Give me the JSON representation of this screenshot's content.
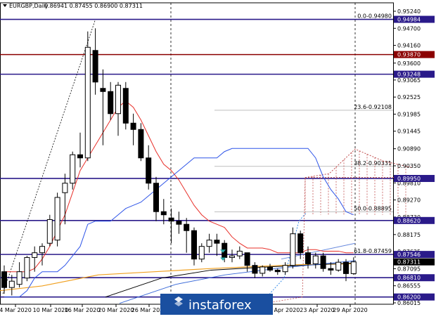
{
  "header": {
    "symbol": "EURGBP,Daily",
    "ohlc": "0.86941 0.87455 0.86900 0.87311"
  },
  "watermark": "instaforex",
  "colors": {
    "bull_candle": "#ffffff",
    "bear_candle": "#000000",
    "tenkan": "#e8302a",
    "kijun": "#2f55e8",
    "senkou_a": "#c05050",
    "senkou_b": "#c05050",
    "chikou": "#3a8de8",
    "level_line": "#2a1a8a",
    "red_level": "#8b0000",
    "sma_orange": "#f0a020",
    "sma_black": "#000000",
    "trendline": "#3a6ad8",
    "channel": "#6688dd",
    "current_price_bg": "#000000",
    "level_badge_bg": "#2a1a8a",
    "red_badge_bg": "#8b0000",
    "watermark_band": "#1a4fa0"
  },
  "chart_data": {
    "type": "candlestick",
    "title": "EURGBP,Daily",
    "ylim": [
      0.86015,
      0.9524
    ],
    "y_ticks": [
      "0.95240",
      "0.94700",
      "0.94160",
      "0.93600",
      "0.93065",
      "0.92525",
      "0.91985",
      "0.91445",
      "0.90890",
      "0.90350",
      "0.89810",
      "0.89270",
      "0.88730",
      "0.88175",
      "0.87635",
      "0.87095",
      "0.86555",
      "0.86015"
    ],
    "x_ticks": [
      "4 Mar 2020",
      "10 Mar 2020",
      "16 Mar 2020",
      "20 Mar 2020",
      "26 Mar 2020",
      "23 Apr 2020",
      "29 Apr 2020"
    ],
    "x_ticks_partial": [
      "Apr 2020"
    ],
    "candles": [
      {
        "o": 0.87,
        "h": 0.872,
        "l": 0.863,
        "c": 0.865
      },
      {
        "o": 0.865,
        "h": 0.869,
        "l": 0.8625,
        "c": 0.867
      },
      {
        "o": 0.866,
        "h": 0.873,
        "l": 0.865,
        "c": 0.87
      },
      {
        "o": 0.868,
        "h": 0.875,
        "l": 0.867,
        "c": 0.8745
      },
      {
        "o": 0.8745,
        "h": 0.878,
        "l": 0.87,
        "c": 0.876
      },
      {
        "o": 0.876,
        "h": 0.879,
        "l": 0.872,
        "c": 0.878
      },
      {
        "o": 0.879,
        "h": 0.888,
        "l": 0.878,
        "c": 0.8865
      },
      {
        "o": 0.88,
        "h": 0.895,
        "l": 0.878,
        "c": 0.8935
      },
      {
        "o": 0.895,
        "h": 0.901,
        "l": 0.885,
        "c": 0.898
      },
      {
        "o": 0.898,
        "h": 0.908,
        "l": 0.896,
        "c": 0.907
      },
      {
        "o": 0.907,
        "h": 0.914,
        "l": 0.903,
        "c": 0.906
      },
      {
        "o": 0.906,
        "h": 0.946,
        "l": 0.905,
        "c": 0.941
      },
      {
        "o": 0.94,
        "h": 0.947,
        "l": 0.926,
        "c": 0.93
      },
      {
        "o": 0.928,
        "h": 0.934,
        "l": 0.91,
        "c": 0.927
      },
      {
        "o": 0.927,
        "h": 0.93,
        "l": 0.918,
        "c": 0.92
      },
      {
        "o": 0.92,
        "h": 0.93,
        "l": 0.913,
        "c": 0.929
      },
      {
        "o": 0.928,
        "h": 0.93,
        "l": 0.915,
        "c": 0.917
      },
      {
        "o": 0.917,
        "h": 0.92,
        "l": 0.91,
        "c": 0.915
      },
      {
        "o": 0.915,
        "h": 0.917,
        "l": 0.905,
        "c": 0.906
      },
      {
        "o": 0.906,
        "h": 0.91,
        "l": 0.896,
        "c": 0.898
      },
      {
        "o": 0.898,
        "h": 0.9,
        "l": 0.886,
        "c": 0.889
      },
      {
        "o": 0.889,
        "h": 0.893,
        "l": 0.885,
        "c": 0.888
      },
      {
        "o": 0.887,
        "h": 0.89,
        "l": 0.879,
        "c": 0.886
      },
      {
        "o": 0.886,
        "h": 0.889,
        "l": 0.882,
        "c": 0.885
      },
      {
        "o": 0.885,
        "h": 0.887,
        "l": 0.876,
        "c": 0.883
      },
      {
        "o": 0.883,
        "h": 0.884,
        "l": 0.872,
        "c": 0.874
      },
      {
        "o": 0.874,
        "h": 0.879,
        "l": 0.873,
        "c": 0.878
      },
      {
        "o": 0.878,
        "h": 0.882,
        "l": 0.876,
        "c": 0.88
      },
      {
        "o": 0.88,
        "h": 0.882,
        "l": 0.875,
        "c": 0.879
      },
      {
        "o": 0.879,
        "h": 0.88,
        "l": 0.873,
        "c": 0.8745
      },
      {
        "o": 0.8745,
        "h": 0.877,
        "l": 0.873,
        "c": 0.875
      },
      {
        "o": 0.875,
        "h": 0.878,
        "l": 0.874,
        "c": 0.8765
      },
      {
        "o": 0.876,
        "h": 0.876,
        "l": 0.87,
        "c": 0.872
      },
      {
        "o": 0.872,
        "h": 0.873,
        "l": 0.868,
        "c": 0.8695
      },
      {
        "o": 0.8695,
        "h": 0.872,
        "l": 0.8685,
        "c": 0.8715
      },
      {
        "o": 0.8715,
        "h": 0.8725,
        "l": 0.87,
        "c": 0.8705
      },
      {
        "o": 0.8705,
        "h": 0.871,
        "l": 0.869,
        "c": 0.87
      },
      {
        "o": 0.87,
        "h": 0.873,
        "l": 0.869,
        "c": 0.872
      },
      {
        "o": 0.872,
        "h": 0.884,
        "l": 0.871,
        "c": 0.882
      },
      {
        "o": 0.882,
        "h": 0.883,
        "l": 0.874,
        "c": 0.876
      },
      {
        "o": 0.876,
        "h": 0.878,
        "l": 0.871,
        "c": 0.8725
      },
      {
        "o": 0.8725,
        "h": 0.876,
        "l": 0.871,
        "c": 0.875
      },
      {
        "o": 0.875,
        "h": 0.876,
        "l": 0.87,
        "c": 0.871
      },
      {
        "o": 0.871,
        "h": 0.873,
        "l": 0.869,
        "c": 0.8705
      },
      {
        "o": 0.8705,
        "h": 0.874,
        "l": 0.87,
        "c": 0.873
      },
      {
        "o": 0.873,
        "h": 0.874,
        "l": 0.867,
        "c": 0.8694
      },
      {
        "o": 0.8694,
        "h": 0.87455,
        "l": 0.869,
        "c": 0.87311
      }
    ],
    "levels": [
      {
        "price": 0.94984,
        "label": "0.0-0.94980",
        "badge": "0.94984",
        "kind": "blue"
      },
      {
        "price": 0.9387,
        "label": "",
        "badge": "0.93870",
        "kind": "red"
      },
      {
        "price": 0.93248,
        "label": "",
        "badge": "0.93248",
        "kind": "blue"
      },
      {
        "price": 0.92108,
        "label": "23.6-0.92108",
        "badge": "",
        "kind": "none"
      },
      {
        "price": 0.90331,
        "label": "38.2-0.90331",
        "badge": "",
        "kind": "none"
      },
      {
        "price": 0.8995,
        "label": "",
        "badge": "0.89950",
        "kind": "blue"
      },
      {
        "price": 0.88895,
        "label": "50.0-0.88895",
        "badge": "",
        "kind": "none"
      },
      {
        "price": 0.8862,
        "label": "",
        "badge": "0.88620",
        "kind": "blue"
      },
      {
        "price": 0.87546,
        "label": "61.8-0.87459",
        "badge": "0.87546",
        "kind": "blue"
      },
      {
        "price": 0.8681,
        "label": "",
        "badge": "0.86810",
        "kind": "blue"
      },
      {
        "price": 0.862,
        "label": "",
        "badge": "0.86200",
        "kind": "blue"
      }
    ],
    "current_price": "0.87311",
    "tenkan": [
      0.87,
      0.87,
      0.87,
      0.87,
      0.871,
      0.874,
      0.878,
      0.883,
      0.888,
      0.895,
      0.902,
      0.906,
      0.91,
      0.914,
      0.918,
      0.922,
      0.924,
      0.922,
      0.918,
      0.913,
      0.908,
      0.904,
      0.902,
      0.899,
      0.895,
      0.891,
      0.888,
      0.886,
      0.885,
      0.884,
      0.881,
      0.879,
      0.8775,
      0.8775,
      0.8775,
      0.877,
      0.876,
      0.876,
      0.876,
      0.876,
      0.877,
      0.877,
      0.8765,
      0.8765,
      0.8765,
      0.876,
      0.876
    ],
    "kijun": [
      0.862,
      0.862,
      0.862,
      0.864,
      0.868,
      0.87,
      0.87,
      0.87,
      0.872,
      0.875,
      0.878,
      0.885,
      0.886,
      0.886,
      0.886,
      0.888,
      0.89,
      0.891,
      0.892,
      0.894,
      0.896,
      0.898,
      0.9,
      0.902,
      0.904,
      0.906,
      0.906,
      0.906,
      0.906,
      0.908,
      0.909,
      0.909,
      0.909,
      0.909,
      0.909,
      0.909,
      0.909,
      0.909,
      0.909,
      0.909,
      0.909,
      0.906,
      0.9,
      0.896,
      0.893,
      0.889,
      0.888
    ]
  }
}
